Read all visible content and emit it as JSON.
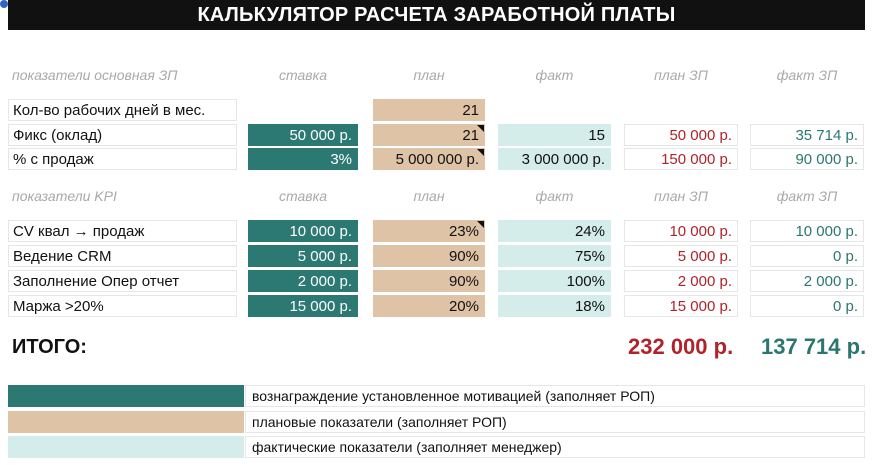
{
  "title": "КАЛЬКУЛЯТОР РАСЧЕТА ЗАРАБОТНОЙ ПЛАТЫ",
  "section1": {
    "headers": [
      "показатели основная ЗП",
      "ставка",
      "план",
      "факт",
      "план ЗП",
      "факт ЗП"
    ],
    "rows": [
      {
        "label": "Кол-во рабочих дней в мес.",
        "rate": "",
        "plan": "21",
        "fact": "",
        "plan_zp": "",
        "fact_zp": ""
      },
      {
        "label": "Фикс (оклад)",
        "rate": "50 000 р.",
        "plan": "21",
        "fact": "15",
        "plan_zp": "50 000 р.",
        "fact_zp": "35 714 р."
      },
      {
        "label": "% с продаж",
        "rate": "3%",
        "plan": "5 000 000 р.",
        "fact": "3 000 000 р.",
        "plan_zp": "150 000 р.",
        "fact_zp": "90 000 р."
      }
    ]
  },
  "section2": {
    "headers": [
      "показатели KPI",
      "ставка",
      "план",
      "факт",
      "план ЗП",
      "факт ЗП"
    ],
    "rows": [
      {
        "label": "CV квал → продаж",
        "rate": "10 000 р.",
        "plan": "23%",
        "fact": "24%",
        "plan_zp": "10 000 р.",
        "fact_zp": "10 000 р."
      },
      {
        "label": "Ведение CRM",
        "rate": "5 000 р.",
        "plan": "90%",
        "fact": "75%",
        "plan_zp": "5 000 р.",
        "fact_zp": "0 р."
      },
      {
        "label": "Заполнение Опер отчет",
        "rate": "2 000 р.",
        "plan": "90%",
        "fact": "100%",
        "plan_zp": "2 000 р.",
        "fact_zp": "2 000 р."
      },
      {
        "label": "Маржа >20%",
        "rate": "15 000 р.",
        "plan": "20%",
        "fact": "18%",
        "plan_zp": "15 000 р.",
        "fact_zp": "0 р."
      }
    ]
  },
  "total": {
    "label": "ИТОГО:",
    "plan": "232 000 р.",
    "fact": "137 714 р."
  },
  "legend": [
    {
      "color": "#2c7872",
      "text": "вознаграждение установленное мотивацией (заполняет РОП)"
    },
    {
      "color": "#dfc3a7",
      "text": "плановые показатели (заполняет РОП)"
    },
    {
      "color": "#d4ecea",
      "text": "фактические показатели (заполняет менеджер)"
    }
  ],
  "colors": {
    "teal": "#2c7872",
    "beige": "#dfc3a7",
    "light_teal": "#d4ecea",
    "red_text": "#b0232a",
    "teal_text": "#2b7770"
  }
}
